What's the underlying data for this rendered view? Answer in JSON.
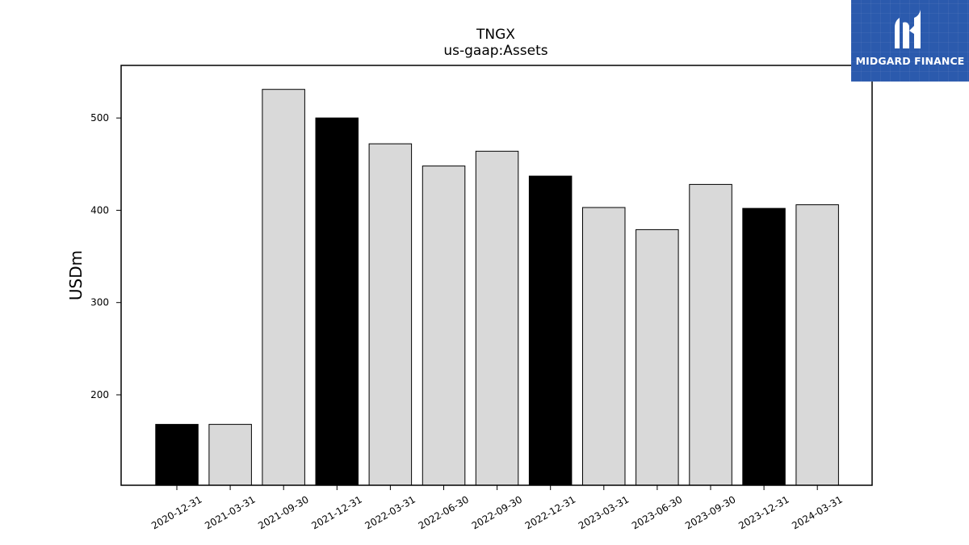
{
  "chart_data": {
    "type": "bar",
    "title": "TNGX",
    "subtitle": "us-gaap:Assets",
    "xlabel": "",
    "ylabel": "USDm",
    "ylim": [
      102,
      557
    ],
    "yticks": [
      200,
      300,
      400,
      500
    ],
    "categories": [
      "2020-12-31",
      "2021-03-31",
      "2021-09-30",
      "2021-12-31",
      "2022-03-31",
      "2022-06-30",
      "2022-09-30",
      "2022-12-31",
      "2023-03-31",
      "2023-06-30",
      "2023-09-30",
      "2023-12-31",
      "2024-03-31"
    ],
    "values": [
      168,
      168,
      531,
      500,
      472,
      448,
      464,
      437,
      403,
      379,
      428,
      402,
      406
    ],
    "bar_colors": [
      "#000000",
      "#d9d9d9",
      "#d9d9d9",
      "#000000",
      "#d9d9d9",
      "#d9d9d9",
      "#d9d9d9",
      "#000000",
      "#d9d9d9",
      "#d9d9d9",
      "#d9d9d9",
      "#000000",
      "#d9d9d9"
    ],
    "grid": false
  },
  "logo": {
    "text": "MIDGARD FINANCE",
    "background": "#2b5aad"
  }
}
